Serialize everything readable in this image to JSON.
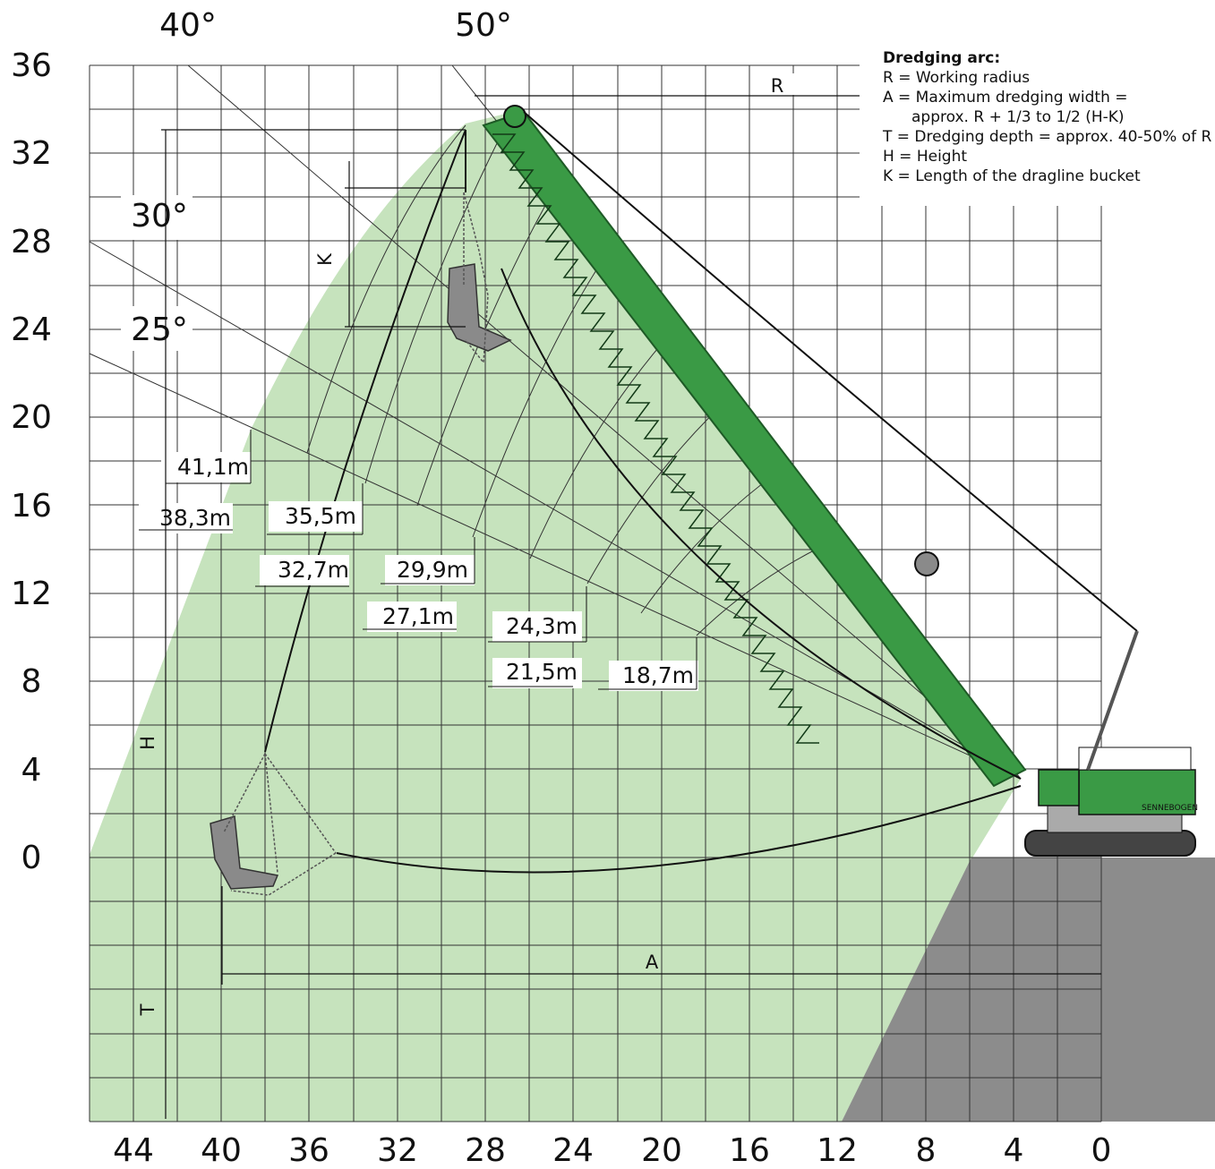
{
  "axes": {
    "y_labels": [
      "36",
      "32",
      "28",
      "24",
      "20",
      "16",
      "12",
      "8",
      "4",
      "0"
    ],
    "x_labels": [
      "44",
      "40",
      "36",
      "32",
      "28",
      "24",
      "20",
      "16",
      "12",
      "8",
      "4",
      "0"
    ]
  },
  "angles": [
    "40°",
    "50°",
    "30°",
    "25°"
  ],
  "radii": [
    "41,1m",
    "38,3m",
    "35,5m",
    "32,7m",
    "29,9m",
    "27,1m",
    "24,3m",
    "21,5m",
    "18,7m"
  ],
  "dimensions": {
    "R": "R",
    "K": "K",
    "H": "H",
    "T": "T",
    "A": "A"
  },
  "legend": {
    "title": "Dredging arc:",
    "lines": [
      "R = Working radius",
      "A = Maximum dredging width =",
      "approx. R + 1/3 to 1/2 (H-K)",
      "T = Dredging depth = approx. 40-50% of R",
      "H = Height",
      "K = Length of the dragline bucket"
    ]
  },
  "machine_label": "SENNEBOGEN",
  "colors": {
    "area": "#c6e3bd",
    "boom": "#3a9a45",
    "ground": "#8c8c8c",
    "bucket": "#8a8a8a"
  }
}
